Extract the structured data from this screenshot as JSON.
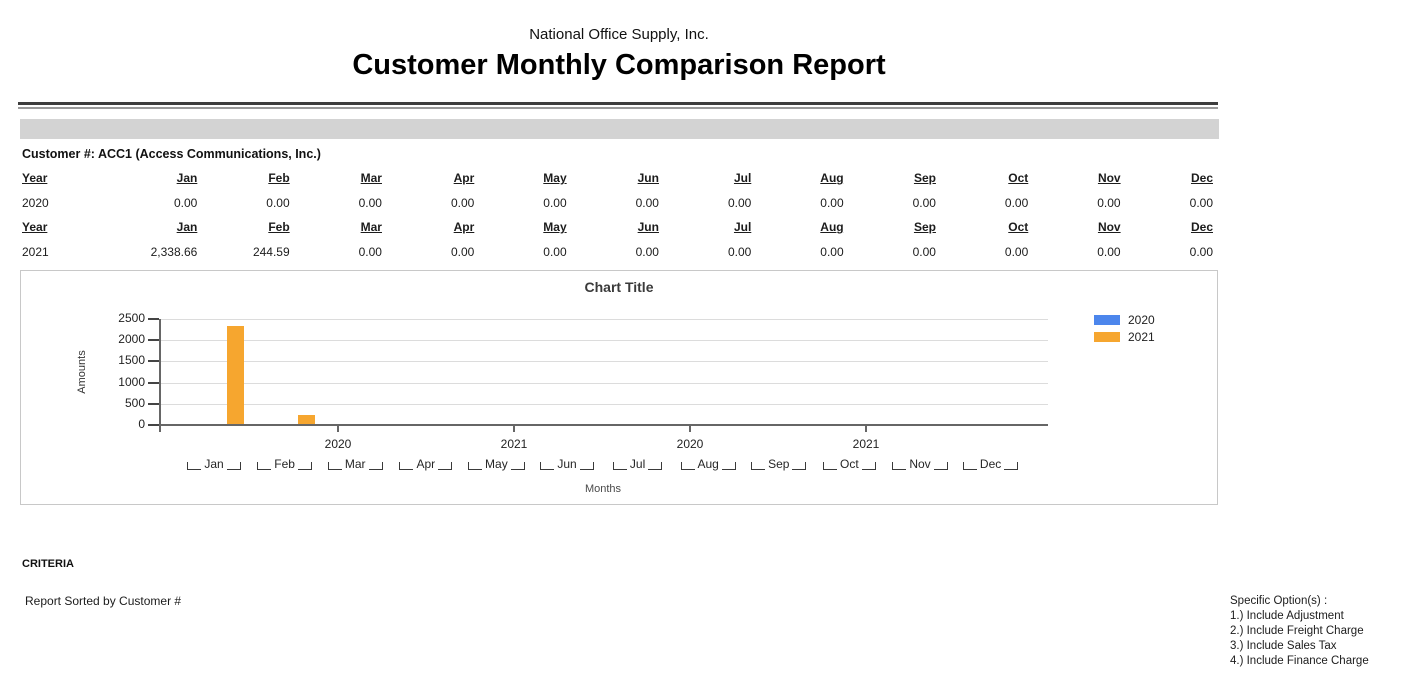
{
  "report": {
    "company": "National Office Supply, Inc.",
    "title": "Customer Monthly Comparison Report"
  },
  "customer": {
    "label": "Customer #: ACC1 (Access Communications, Inc.)"
  },
  "table": {
    "year_header": "Year",
    "months": [
      "Jan",
      "Feb",
      "Mar",
      "Apr",
      "May",
      "Jun",
      "Jul",
      "Aug",
      "Sep",
      "Oct",
      "Nov",
      "Dec"
    ],
    "rows": [
      {
        "year": "2020",
        "values": [
          "0.00",
          "0.00",
          "0.00",
          "0.00",
          "0.00",
          "0.00",
          "0.00",
          "0.00",
          "0.00",
          "0.00",
          "0.00",
          "0.00"
        ]
      },
      {
        "year": "2021",
        "values": [
          "2,338.66",
          "244.59",
          "0.00",
          "0.00",
          "0.00",
          "0.00",
          "0.00",
          "0.00",
          "0.00",
          "0.00",
          "0.00",
          "0.00"
        ]
      }
    ]
  },
  "chart_data": {
    "type": "bar",
    "title": "Chart Title",
    "xlabel": "Months",
    "ylabel": "Amounts",
    "categories": [
      "Jan",
      "Feb",
      "Mar",
      "Apr",
      "May",
      "Jun",
      "Jul",
      "Aug",
      "Sep",
      "Oct",
      "Nov",
      "Dec"
    ],
    "series": [
      {
        "name": "2020",
        "color": "#4c86ec",
        "values": [
          0,
          0,
          0,
          0,
          0,
          0,
          0,
          0,
          0,
          0,
          0,
          0
        ]
      },
      {
        "name": "2021",
        "color": "#f6a62f",
        "values": [
          2338.66,
          244.59,
          0,
          0,
          0,
          0,
          0,
          0,
          0,
          0,
          0,
          0
        ]
      }
    ],
    "ylim": [
      0,
      2500
    ],
    "yticks": [
      0,
      500,
      1000,
      1500,
      2000,
      2500
    ],
    "axis_group_labels": [
      "2020",
      "2021",
      "2020",
      "2021"
    ],
    "legend_position": "right",
    "grid": true
  },
  "criteria": {
    "heading": "CRITERIA",
    "sorted_by": "Report Sorted by Customer #"
  },
  "options": {
    "heading": "Specific Option(s) :",
    "items": [
      "1.) Include Adjustment",
      "2.) Include Freight Charge",
      "3.) Include Sales Tax",
      "4.) Include Finance Charge"
    ]
  },
  "colors": {
    "section_bar": "#d3d3d3",
    "series_2020": "#4c86ec",
    "series_2021": "#f6a62f"
  }
}
